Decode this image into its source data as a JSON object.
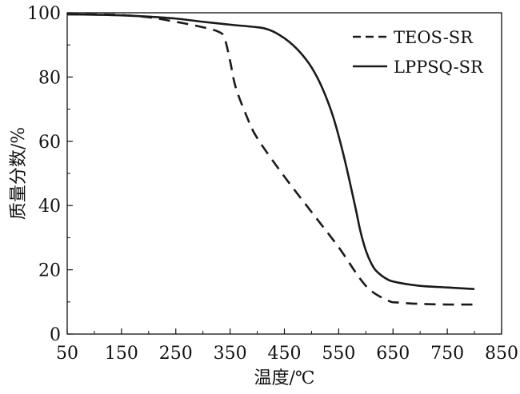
{
  "chart_data": {
    "type": "line",
    "title": "",
    "xlabel": "温度/℃",
    "ylabel": "质量分数/%",
    "xlim": [
      50,
      850
    ],
    "ylim": [
      0,
      100
    ],
    "xticks": [
      50,
      150,
      250,
      350,
      450,
      550,
      650,
      750,
      850
    ],
    "yticks": [
      0,
      20,
      40,
      60,
      80,
      100
    ],
    "grid": false,
    "legend_position": "top-right",
    "series": [
      {
        "name": "TEOS-SR",
        "style": "dashed",
        "color": "#1a1a1a",
        "x": [
          50,
          100,
          150,
          200,
          250,
          300,
          330,
          340,
          350,
          360,
          380,
          400,
          450,
          500,
          550,
          600,
          640,
          660,
          700,
          750,
          800
        ],
        "y": [
          99.5,
          99.5,
          99.3,
          98.6,
          97.2,
          95.5,
          94,
          92,
          85,
          77,
          68,
          61,
          49,
          38,
          27,
          15,
          10.5,
          9.8,
          9.4,
          9.2,
          9.2
        ]
      },
      {
        "name": "LPPSQ-SR",
        "style": "solid",
        "color": "#1a1a1a",
        "x": [
          50,
          100,
          150,
          200,
          250,
          300,
          350,
          400,
          420,
          440,
          460,
          480,
          500,
          520,
          540,
          560,
          580,
          590,
          600,
          610,
          620,
          640,
          660,
          700,
          750,
          800
        ],
        "y": [
          99.5,
          99.4,
          99.2,
          98.8,
          98.2,
          97.2,
          96.3,
          95.5,
          94.8,
          93.2,
          90.8,
          87.5,
          83,
          76.5,
          67.5,
          55,
          40,
          32,
          26,
          22,
          19.5,
          17,
          16,
          15,
          14.5,
          14
        ]
      }
    ]
  }
}
